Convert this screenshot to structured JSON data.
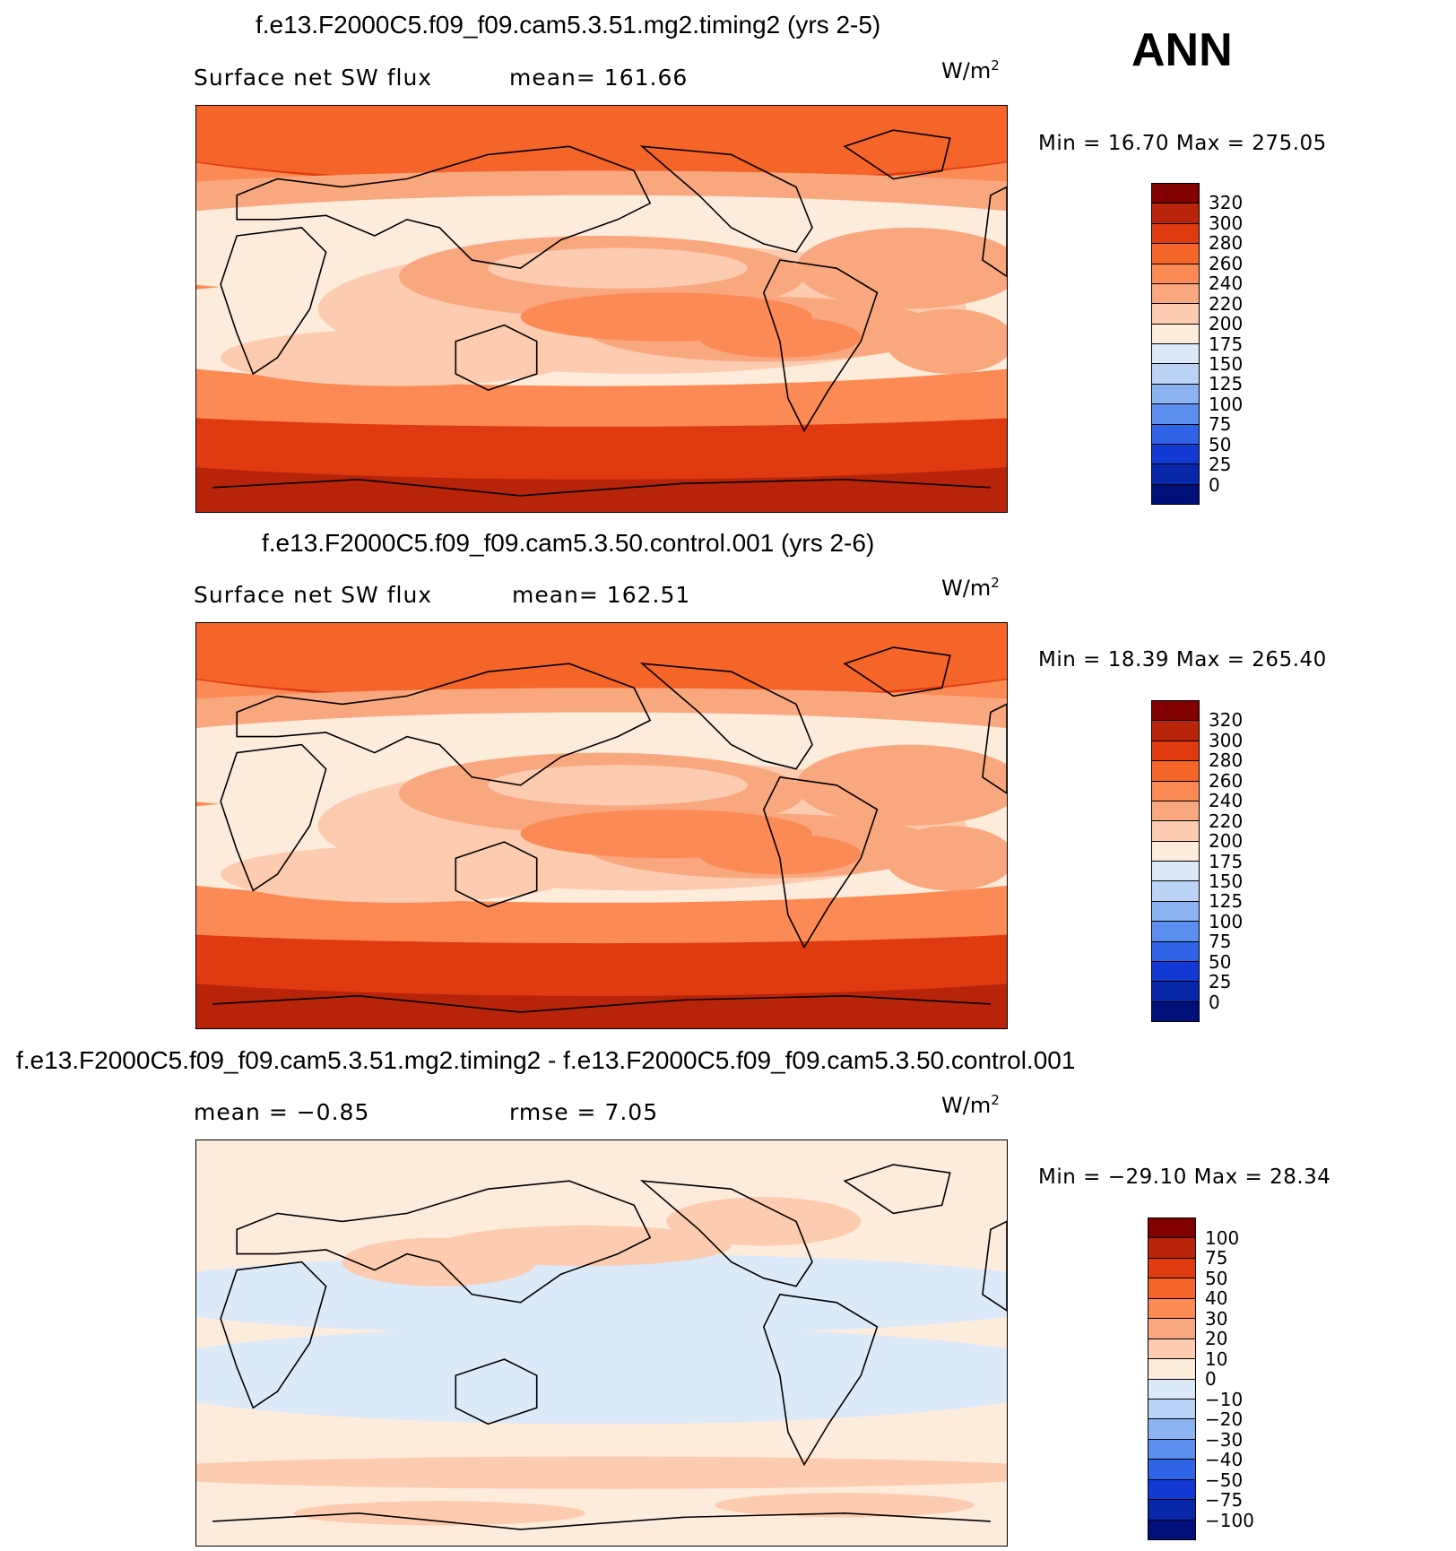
{
  "season": "ANN",
  "units_base": "W/m",
  "units_exp": "2",
  "panels": [
    {
      "id": "test",
      "title": "f.e13.F2000C5.f09_f09.cam5.3.51.mg2.timing2 (yrs 2-5)",
      "left_label": "Surface net SW flux",
      "center_label": "mean=  161.66",
      "minmax": "Min =   16.70  Max  =  275.05",
      "levels": [
        "320",
        "300",
        "280",
        "260",
        "240",
        "220",
        "200",
        "175",
        "150",
        "125",
        "100",
        "75",
        "50",
        "25",
        "0"
      ],
      "colors": [
        "#800000",
        "#b8240a",
        "#e03a10",
        "#f56428",
        "#fb8a55",
        "#f9a77f",
        "#fccbb0",
        "#fdebdc",
        "#dbe9f9",
        "#bad2f5",
        "#8cb3f1",
        "#5c8ef0",
        "#2f63e8",
        "#1239d4",
        "#0826a8",
        "#000f7a"
      ]
    },
    {
      "id": "control",
      "title": "f.e13.F2000C5.f09_f09.cam5.3.50.control.001 (yrs 2-6)",
      "left_label": "Surface net SW flux",
      "center_label": "mean=  162.51",
      "minmax": "Min =   18.39  Max  =  265.40",
      "levels": [
        "320",
        "300",
        "280",
        "260",
        "240",
        "220",
        "200",
        "175",
        "150",
        "125",
        "100",
        "75",
        "50",
        "25",
        "0"
      ],
      "colors": [
        "#800000",
        "#b8240a",
        "#e03a10",
        "#f56428",
        "#fb8a55",
        "#f9a77f",
        "#fccbb0",
        "#fdebdc",
        "#dbe9f9",
        "#bad2f5",
        "#8cb3f1",
        "#5c8ef0",
        "#2f63e8",
        "#1239d4",
        "#0826a8",
        "#000f7a"
      ]
    },
    {
      "id": "diff",
      "title": "f.e13.F2000C5.f09_f09.cam5.3.51.mg2.timing2 - f.e13.F2000C5.f09_f09.cam5.3.50.control.001",
      "left_label": "mean =    −0.85",
      "center_label": "rmse =     7.05",
      "minmax": "Min =  −29.10  Max =    28.34",
      "levels": [
        "100",
        "75",
        "50",
        "40",
        "30",
        "20",
        "10",
        "0",
        "−10",
        "−20",
        "−30",
        "−40",
        "−50",
        "−75",
        "−100"
      ],
      "colors": [
        "#800000",
        "#b8240a",
        "#e03a10",
        "#f56428",
        "#fb8a55",
        "#f9a77f",
        "#fccbb0",
        "#fdebdc",
        "#dbe9f9",
        "#bad2f5",
        "#8cb3f1",
        "#5c8ef0",
        "#2f63e8",
        "#1239d4",
        "#0826a8",
        "#000f7a"
      ]
    }
  ],
  "chart_data": [
    {
      "type": "heatmap",
      "title": "f.e13.F2000C5.f09_f09.cam5.3.51.mg2.timing2 (yrs 2-5)",
      "variable": "Surface net SW flux",
      "units": "W/m2",
      "mean": 161.66,
      "min": 16.7,
      "max": 275.05,
      "contour_levels": [
        0,
        25,
        50,
        75,
        100,
        125,
        150,
        175,
        200,
        220,
        240,
        260,
        280,
        300,
        320
      ],
      "colors": [
        "#000f7a",
        "#0826a8",
        "#1239d4",
        "#2f63e8",
        "#5c8ef0",
        "#8cb3f1",
        "#bad2f5",
        "#dbe9f9",
        "#fdebdc",
        "#fccbb0",
        "#f9a77f",
        "#fb8a55",
        "#f56428",
        "#e03a10",
        "#b8240a",
        "#800000"
      ]
    },
    {
      "type": "heatmap",
      "title": "f.e13.F2000C5.f09_f09.cam5.3.50.control.001 (yrs 2-6)",
      "variable": "Surface net SW flux",
      "units": "W/m2",
      "mean": 162.51,
      "min": 18.39,
      "max": 265.4,
      "contour_levels": [
        0,
        25,
        50,
        75,
        100,
        125,
        150,
        175,
        200,
        220,
        240,
        260,
        280,
        300,
        320
      ],
      "colors": [
        "#000f7a",
        "#0826a8",
        "#1239d4",
        "#2f63e8",
        "#5c8ef0",
        "#8cb3f1",
        "#bad2f5",
        "#dbe9f9",
        "#fdebdc",
        "#fccbb0",
        "#f9a77f",
        "#fb8a55",
        "#f56428",
        "#e03a10",
        "#b8240a",
        "#800000"
      ]
    },
    {
      "type": "heatmap",
      "title": "f.e13.F2000C5.f09_f09.cam5.3.51.mg2.timing2 - f.e13.F2000C5.f09_f09.cam5.3.50.control.001",
      "units": "W/m2",
      "mean": -0.85,
      "rmse": 7.05,
      "min": -29.1,
      "max": 28.34,
      "contour_levels": [
        -100,
        -75,
        -50,
        -40,
        -30,
        -20,
        -10,
        0,
        10,
        20,
        30,
        40,
        50,
        75,
        100
      ],
      "colors": [
        "#000f7a",
        "#0826a8",
        "#1239d4",
        "#2f63e8",
        "#5c8ef0",
        "#8cb3f1",
        "#bad2f5",
        "#dbe9f9",
        "#fdebdc",
        "#fccbb0",
        "#f9a77f",
        "#fb8a55",
        "#f56428",
        "#e03a10",
        "#b8240a",
        "#800000"
      ]
    }
  ]
}
